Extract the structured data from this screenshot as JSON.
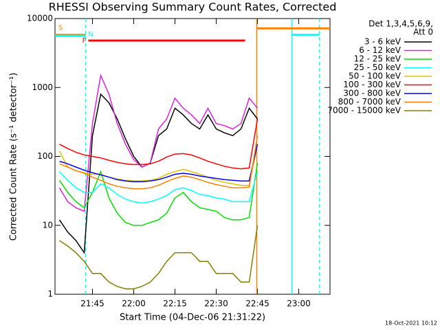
{
  "chart_data": {
    "type": "line",
    "title": "RHESSI Observing Summary Count Rates, Corrected",
    "x_label": "Start Time (04-Dec-06 21:31:22)",
    "y_label": "Corrected Count Rate (s⁻¹ detector⁻¹)",
    "timestamp": "18-Oct-2021 10:12",
    "legend_header": [
      "Det 1,3,4,5,6,9,",
      "Att 0"
    ],
    "log_scale": true,
    "xlim": [
      "21:31:22",
      "23:11:22"
    ],
    "xticks": [
      "21:45",
      "22:00",
      "22:15",
      "22:30",
      "22:45",
      "23:00"
    ],
    "ylim": [
      1,
      10000
    ],
    "yticks": [
      1,
      10,
      100,
      1000,
      10000
    ],
    "x": [
      "21:33",
      "21:36",
      "21:39",
      "21:42",
      "21:45",
      "21:48",
      "21:51",
      "21:54",
      "21:57",
      "22:00",
      "22:03",
      "22:06",
      "22:09",
      "22:12",
      "22:15",
      "22:18",
      "22:21",
      "22:24",
      "22:27",
      "22:30",
      "22:33",
      "22:36",
      "22:39",
      "22:42",
      "22:45"
    ],
    "series": [
      {
        "name": "3 - 6 keV",
        "color": "#000000",
        "values": [
          12,
          8,
          6,
          4,
          200,
          800,
          600,
          350,
          180,
          100,
          70,
          80,
          200,
          250,
          500,
          400,
          300,
          250,
          400,
          250,
          220,
          200,
          250,
          500,
          350
        ]
      },
      {
        "name": "6 - 12 keV",
        "color": "#e020e0",
        "values": [
          35,
          22,
          18,
          16,
          300,
          1500,
          800,
          300,
          150,
          90,
          70,
          80,
          250,
          350,
          700,
          500,
          400,
          300,
          500,
          300,
          280,
          250,
          300,
          700,
          500
        ]
      },
      {
        "name": "12 - 25 keV",
        "color": "#00e000",
        "values": [
          45,
          30,
          22,
          18,
          30,
          60,
          25,
          15,
          11,
          10,
          10,
          11,
          12,
          15,
          25,
          30,
          22,
          18,
          17,
          16,
          13,
          12,
          12,
          13,
          80
        ]
      },
      {
        "name": "25 - 50 keV",
        "color": "#00ffff",
        "values": [
          60,
          45,
          35,
          30,
          30,
          40,
          35,
          28,
          24,
          22,
          21,
          22,
          24,
          27,
          33,
          35,
          32,
          28,
          27,
          25,
          24,
          22,
          22,
          22,
          60
        ]
      },
      {
        "name": "50 - 100 keV",
        "color": "#e0c000",
        "values": [
          120,
          70,
          62,
          58,
          55,
          55,
          50,
          47,
          45,
          44,
          44,
          45,
          48,
          55,
          60,
          65,
          60,
          55,
          50,
          45,
          42,
          40,
          38,
          38,
          150
        ]
      },
      {
        "name": "100 - 300 keV",
        "color": "#ff0000",
        "values": [
          150,
          130,
          115,
          105,
          100,
          95,
          88,
          82,
          78,
          76,
          76,
          78,
          85,
          98,
          108,
          110,
          105,
          95,
          85,
          78,
          72,
          68,
          66,
          68,
          350
        ]
      },
      {
        "name": "300 - 800 keV",
        "color": "#0000ff",
        "values": [
          85,
          78,
          70,
          63,
          58,
          54,
          50,
          46,
          44,
          43,
          43,
          44,
          46,
          50,
          55,
          57,
          55,
          52,
          50,
          48,
          46,
          45,
          44,
          44,
          150
        ]
      },
      {
        "name": "800 - 7000 keV",
        "color": "#ff8000",
        "values": [
          78,
          70,
          62,
          57,
          50,
          45,
          40,
          37,
          35,
          34,
          34,
          35,
          38,
          43,
          48,
          52,
          50,
          46,
          42,
          39,
          37,
          35,
          35,
          36,
          200
        ]
      },
      {
        "name": "7000 - 15000 keV",
        "color": "#808000",
        "values": [
          6,
          5,
          4,
          3,
          2,
          2,
          1.5,
          1.3,
          1.2,
          1.2,
          1.3,
          1.5,
          2,
          3,
          4,
          4,
          4,
          3,
          3,
          2,
          2,
          2,
          1.5,
          1.5,
          10
        ]
      }
    ],
    "flags": [
      {
        "label": "S",
        "color": "#ff8000",
        "start": "21:31:22",
        "end": "21:42:30",
        "level": 5800
      },
      {
        "label": "N",
        "color": "#00ffff",
        "start": "21:31:22",
        "end": "21:42:30",
        "level": 5600
      },
      {
        "label": "F",
        "color": "#ff0000",
        "start": "21:43:30",
        "end": "22:40:30",
        "level": 4800
      },
      {
        "color": "#ff8000",
        "start": "22:44:45",
        "end": "23:11:22",
        "level": 7200
      },
      {
        "color": "#00ffff",
        "start": "22:57:30",
        "end": "23:07:30",
        "level": 5800
      }
    ],
    "markers": [
      {
        "time": "21:42:30",
        "color": "#00ffff",
        "dashed": true
      },
      {
        "time": "22:44:45",
        "color": "#ff8000",
        "dashed": false
      },
      {
        "time": "22:57:30",
        "color": "#00ffff",
        "dashed": false
      },
      {
        "time": "23:07:30",
        "color": "#00ffff",
        "dashed": true
      }
    ]
  }
}
